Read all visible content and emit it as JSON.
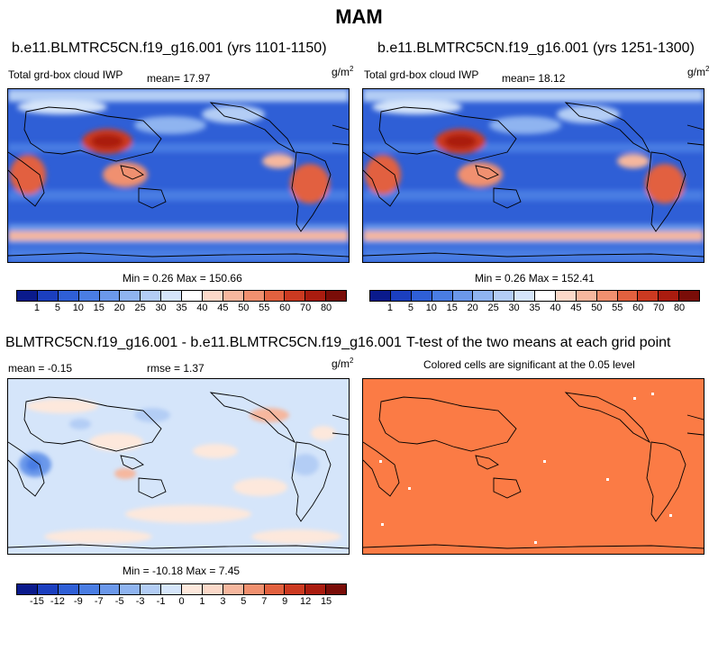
{
  "title": "MAM",
  "panels": [
    {
      "id": "p1",
      "title": "b.e11.BLMTRC5CN.f19_g16.001 (yrs 1101-1150)",
      "left_label": "Total grd-box cloud IWP",
      "mean_label": "mean=  17.97",
      "unit_base": "g/m",
      "unit_exp": "2",
      "minmax": "Min =   0.26 Max = 150.66"
    },
    {
      "id": "p2",
      "title": "b.e11.BLMTRC5CN.f19_g16.001 (yrs 1251-1300)",
      "left_label": "Total grd-box cloud IWP",
      "mean_label": "mean=  18.12",
      "unit_base": "g/m",
      "unit_exp": "2",
      "minmax": "Min =   0.26 Max = 152.41"
    },
    {
      "id": "p3",
      "title": "BLMTRC5CN.f19_g16.001 - b.e11.BLMTRC5CN.f19_g16.001",
      "left_label": "mean =  -0.15",
      "mean_label": "rmse =   1.37",
      "unit_base": "g/m",
      "unit_exp": "2",
      "minmax": "Min = -10.18 Max =   7.45"
    },
    {
      "id": "p4",
      "title": "T-test of the two means at each grid point",
      "subtitle": "Colored cells are significant at the 0.05 level"
    }
  ],
  "chart_data": [
    {
      "type": "heatmap",
      "title": "b.e11.BLMTRC5CN.f19_g16.001 (yrs 1101-1150)",
      "variable": "Total grd-box cloud IWP",
      "units": "g/m2",
      "mean": 17.97,
      "min": 0.26,
      "max": 150.66,
      "levels": [
        1,
        5,
        10,
        15,
        20,
        25,
        30,
        35,
        40,
        45,
        50,
        55,
        60,
        70,
        80
      ],
      "colors": [
        "#0a1a8c",
        "#1b3fbf",
        "#2f5fd6",
        "#4a7de3",
        "#6b98ea",
        "#8fb4f0",
        "#b3cdf5",
        "#d5e5fa",
        "#ffffff",
        "#fbd9c9",
        "#f6b79e",
        "#f0906f",
        "#e2613f",
        "#cc3a21",
        "#aa1c0f",
        "#7a0d08"
      ]
    },
    {
      "type": "heatmap",
      "title": "b.e11.BLMTRC5CN.f19_g16.001 (yrs 1251-1300)",
      "variable": "Total grd-box cloud IWP",
      "units": "g/m2",
      "mean": 18.12,
      "min": 0.26,
      "max": 152.41,
      "levels": [
        1,
        5,
        10,
        15,
        20,
        25,
        30,
        35,
        40,
        45,
        50,
        55,
        60,
        70,
        80
      ],
      "colors": [
        "#0a1a8c",
        "#1b3fbf",
        "#2f5fd6",
        "#4a7de3",
        "#6b98ea",
        "#8fb4f0",
        "#b3cdf5",
        "#d5e5fa",
        "#ffffff",
        "#fbd9c9",
        "#f6b79e",
        "#f0906f",
        "#e2613f",
        "#cc3a21",
        "#aa1c0f",
        "#7a0d08"
      ]
    },
    {
      "type": "heatmap",
      "title": "BLMTRC5CN.f19_g16.001 - b.e11.BLMTRC5CN.f19_g16.001",
      "units": "g/m2",
      "mean": -0.15,
      "rmse": 1.37,
      "min": -10.18,
      "max": 7.45,
      "levels": [
        -15,
        -12,
        -9,
        -7,
        -5,
        -3,
        -1,
        0,
        1,
        3,
        5,
        7,
        9,
        12,
        15
      ],
      "colors": [
        "#0a1a8c",
        "#1b3fbf",
        "#2f5fd6",
        "#4a7de3",
        "#6b98ea",
        "#8fb4f0",
        "#b3cdf5",
        "#d5e5fa",
        "#fde8dc",
        "#fbd9c9",
        "#f6b79e",
        "#f0906f",
        "#e2613f",
        "#cc3a21",
        "#aa1c0f",
        "#7a0d08"
      ]
    },
    {
      "type": "heatmap",
      "title": "T-test of the two means at each grid point",
      "subtitle": "Colored cells are significant at the 0.05 level",
      "significant_color": "#fb7b45"
    }
  ]
}
